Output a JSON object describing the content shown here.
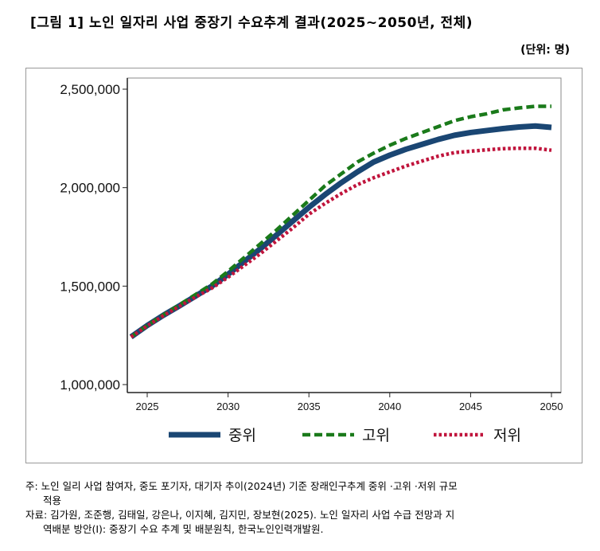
{
  "title": "[그림 1] 노인 일자리 사업 중장기 수요추계 결과(2025~2050년, 전체)",
  "unit": "(단위: 명)",
  "chart_data": {
    "type": "line",
    "title": "[그림 1] 노인 일자리 사업 중장기 수요추계 결과(2025~2050년, 전체)",
    "x": [
      2024,
      2025,
      2026,
      2027,
      2028,
      2029,
      2030,
      2031,
      2032,
      2033,
      2034,
      2035,
      2036,
      2037,
      2038,
      2039,
      2040,
      2041,
      2042,
      2043,
      2044,
      2045,
      2046,
      2047,
      2048,
      2049,
      2050
    ],
    "xlim": [
      2023.3,
      2050.5
    ],
    "ylim": [
      960000,
      2550000
    ],
    "xticks": [
      2025,
      2030,
      2035,
      2040,
      2045,
      2050
    ],
    "yticks": [
      1000000,
      1500000,
      2000000,
      2500000
    ],
    "ytick_labels": [
      "1,000,000",
      "1,500,000",
      "2,000,000",
      "2,500,000"
    ],
    "xtick_labels": [
      "2025",
      "2030",
      "2035",
      "2040",
      "2045",
      "2050"
    ],
    "grid": false,
    "legend": "bottom",
    "series": [
      {
        "name": "중위",
        "color": "#1a4673",
        "style": "solid",
        "values": [
          1242000,
          1300000,
          1352000,
          1400000,
          1450000,
          1500000,
          1560000,
          1625000,
          1690000,
          1760000,
          1830000,
          1900000,
          1965000,
          2025000,
          2080000,
          2130000,
          2165000,
          2195000,
          2220000,
          2245000,
          2266000,
          2280000,
          2290000,
          2300000,
          2308000,
          2313000,
          2306000
        ]
      },
      {
        "name": "고위",
        "color": "#1a7a1a",
        "style": "dashed",
        "values": [
          1242000,
          1300000,
          1354000,
          1405000,
          1458000,
          1510000,
          1575000,
          1645000,
          1715000,
          1785000,
          1860000,
          1935000,
          2010000,
          2070000,
          2130000,
          2175000,
          2215000,
          2250000,
          2280000,
          2310000,
          2340000,
          2360000,
          2375000,
          2395000,
          2405000,
          2413000,
          2413000
        ]
      },
      {
        "name": "저위",
        "color": "#c0143c",
        "style": "dotted",
        "values": [
          1242000,
          1298000,
          1350000,
          1398000,
          1445000,
          1490000,
          1545000,
          1605000,
          1665000,
          1730000,
          1795000,
          1865000,
          1920000,
          1970000,
          2015000,
          2050000,
          2080000,
          2110000,
          2135000,
          2160000,
          2178000,
          2185000,
          2192000,
          2198000,
          2200000,
          2200000,
          2190000
        ]
      }
    ]
  },
  "notes": {
    "note1": "주: 노인 일리 사업 참여자, 중도 포기자, 대기자 추이(2024년) 기준 장래인구추계 중위 ·고위 ·저위 규모",
    "note1b": "적용",
    "note2": "자료: 김가원, 조준행, 김태일, 강은나, 이지혜, 김지민, 장보현(2025). 노인 일자리 사업 수급 전망과 지",
    "note2b": "역배분 방안(Ⅰ): 중장기 수요 추계 및 배분원칙, 한국노인인력개발원."
  }
}
